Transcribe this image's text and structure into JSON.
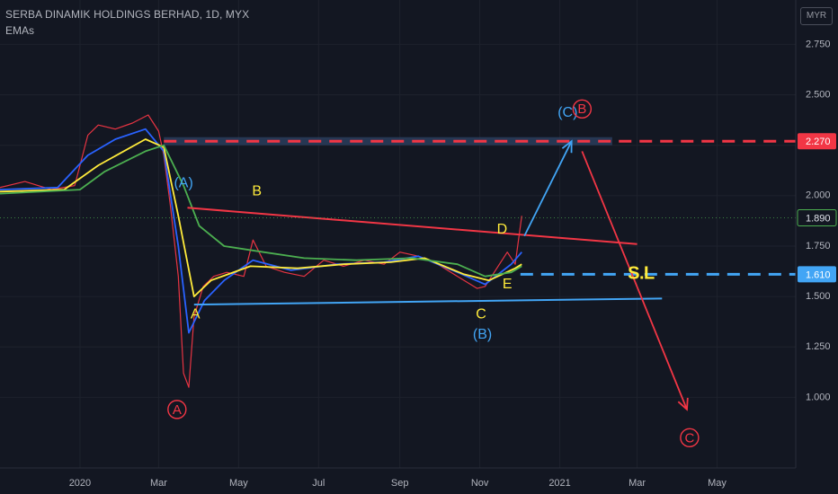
{
  "header": {
    "title": "SERBA DINAMIK HOLDINGS BERHAD, 1D, MYX",
    "indicator": "EMAs",
    "currency": "MYR"
  },
  "colors": {
    "background": "#131722",
    "grid": "#1e222d",
    "resistance_line": "#f23645",
    "support_line": "#42a5f5",
    "wave_red": "#f23645",
    "wave_blue": "#42a5f5",
    "wave_yellow": "#ffeb3b",
    "zone_fill": "#2a3d5c"
  },
  "chart_data": {
    "type": "line",
    "y_axis": {
      "ticks": [
        "2.750",
        "2.500",
        "2.250",
        "2.000",
        "1.750",
        "1.500",
        "1.250",
        "1.000"
      ],
      "ylim": [
        0.65,
        2.97
      ],
      "side": "right"
    },
    "x_axis": {
      "ticks": [
        "2020",
        "Mar",
        "May",
        "Jul",
        "Sep",
        "Nov",
        "2021",
        "Mar",
        "May"
      ],
      "range": [
        "2019-11-01",
        "2021-06-30"
      ]
    },
    "grid": true,
    "price_labels": [
      {
        "value": 2.27,
        "text": "2.270",
        "color": "#f23645"
      },
      {
        "value": 1.89,
        "text": "1.890",
        "color": "#131722"
      },
      {
        "value": 1.61,
        "text": "1.610",
        "color": "#42a5f5"
      }
    ],
    "series": [
      {
        "role": "price",
        "color": "#f23645",
        "points": [
          [
            "2019-11-01",
            2.04
          ],
          [
            "2019-11-20",
            2.07
          ],
          [
            "2019-12-10",
            2.03
          ],
          [
            "2019-12-28",
            2.05
          ],
          [
            "2020-01-07",
            2.3
          ],
          [
            "2020-01-15",
            2.35
          ],
          [
            "2020-01-28",
            2.33
          ],
          [
            "2020-02-10",
            2.36
          ],
          [
            "2020-02-22",
            2.4
          ],
          [
            "2020-03-01",
            2.32
          ],
          [
            "2020-03-05",
            2.2
          ],
          [
            "2020-03-10",
            1.95
          ],
          [
            "2020-03-16",
            1.6
          ],
          [
            "2020-03-20",
            1.12
          ],
          [
            "2020-03-24",
            1.05
          ],
          [
            "2020-03-28",
            1.4
          ],
          [
            "2020-04-04",
            1.55
          ],
          [
            "2020-04-12",
            1.6
          ],
          [
            "2020-04-22",
            1.62
          ],
          [
            "2020-05-05",
            1.6
          ],
          [
            "2020-05-12",
            1.78
          ],
          [
            "2020-05-22",
            1.65
          ],
          [
            "2020-06-05",
            1.62
          ],
          [
            "2020-06-20",
            1.6
          ],
          [
            "2020-07-05",
            1.68
          ],
          [
            "2020-07-20",
            1.65
          ],
          [
            "2020-08-05",
            1.68
          ],
          [
            "2020-08-20",
            1.66
          ],
          [
            "2020-09-01",
            1.72
          ],
          [
            "2020-09-15",
            1.7
          ],
          [
            "2020-09-30",
            1.66
          ],
          [
            "2020-10-15",
            1.6
          ],
          [
            "2020-10-30",
            1.54
          ],
          [
            "2020-11-05",
            1.55
          ],
          [
            "2020-11-15",
            1.65
          ],
          [
            "2020-11-22",
            1.72
          ],
          [
            "2020-11-28",
            1.66
          ],
          [
            "2020-12-03",
            1.9
          ]
        ]
      },
      {
        "role": "ema-fast",
        "color": "#2962ff",
        "points": [
          [
            "2019-11-01",
            2.03
          ],
          [
            "2019-12-15",
            2.04
          ],
          [
            "2020-01-07",
            2.2
          ],
          [
            "2020-01-28",
            2.28
          ],
          [
            "2020-02-20",
            2.33
          ],
          [
            "2020-03-05",
            2.22
          ],
          [
            "2020-03-16",
            1.75
          ],
          [
            "2020-03-24",
            1.32
          ],
          [
            "2020-04-05",
            1.48
          ],
          [
            "2020-04-20",
            1.58
          ],
          [
            "2020-05-12",
            1.68
          ],
          [
            "2020-06-10",
            1.63
          ],
          [
            "2020-07-15",
            1.66
          ],
          [
            "2020-08-20",
            1.67
          ],
          [
            "2020-09-15",
            1.7
          ],
          [
            "2020-10-15",
            1.62
          ],
          [
            "2020-11-05",
            1.56
          ],
          [
            "2020-11-25",
            1.66
          ],
          [
            "2020-12-03",
            1.72
          ]
        ]
      },
      {
        "role": "ema-mid",
        "color": "#ffeb3b",
        "points": [
          [
            "2019-11-01",
            2.02
          ],
          [
            "2019-12-20",
            2.03
          ],
          [
            "2020-01-15",
            2.15
          ],
          [
            "2020-02-20",
            2.28
          ],
          [
            "2020-03-05",
            2.24
          ],
          [
            "2020-03-16",
            1.9
          ],
          [
            "2020-03-28",
            1.5
          ],
          [
            "2020-04-10",
            1.58
          ],
          [
            "2020-05-10",
            1.65
          ],
          [
            "2020-06-15",
            1.64
          ],
          [
            "2020-07-20",
            1.66
          ],
          [
            "2020-08-25",
            1.67
          ],
          [
            "2020-09-20",
            1.69
          ],
          [
            "2020-10-20",
            1.61
          ],
          [
            "2020-11-08",
            1.58
          ],
          [
            "2020-11-28",
            1.64
          ],
          [
            "2020-12-03",
            1.66
          ]
        ]
      },
      {
        "role": "ema-slow",
        "color": "#4caf50",
        "points": [
          [
            "2019-11-01",
            2.01
          ],
          [
            "2020-01-01",
            2.03
          ],
          [
            "2020-01-20",
            2.12
          ],
          [
            "2020-02-20",
            2.22
          ],
          [
            "2020-03-05",
            2.25
          ],
          [
            "2020-03-20",
            2.05
          ],
          [
            "2020-04-01",
            1.85
          ],
          [
            "2020-04-20",
            1.75
          ],
          [
            "2020-05-20",
            1.72
          ],
          [
            "2020-06-20",
            1.69
          ],
          [
            "2020-07-30",
            1.68
          ],
          [
            "2020-09-10",
            1.69
          ],
          [
            "2020-10-15",
            1.66
          ],
          [
            "2020-11-05",
            1.6
          ],
          [
            "2020-11-25",
            1.62
          ],
          [
            "2020-12-03",
            1.65
          ]
        ]
      }
    ],
    "trendlines": [
      {
        "name": "resistance",
        "color": "#f23645",
        "from": [
          "2020-03-23",
          1.94
        ],
        "to": [
          "2021-03-01",
          1.76
        ]
      },
      {
        "name": "support",
        "color": "#42a5f5",
        "from": [
          "2020-03-28",
          1.46
        ],
        "to": [
          "2021-03-20",
          1.49
        ]
      }
    ],
    "horizontal_lines": [
      {
        "value": 2.27,
        "color": "#f23645",
        "dashed": true,
        "from": "2020-03-05"
      },
      {
        "value": 1.61,
        "color": "#42a5f5",
        "dashed": true,
        "from": "2020-12-02"
      }
    ],
    "zone": {
      "from": [
        "2020-03-05",
        2.29
      ],
      "to": [
        "2021-02-10",
        2.25
      ]
    },
    "forecast_arrows": [
      {
        "color": "#42a5f5",
        "points": [
          [
            "2020-12-05",
            1.8
          ],
          [
            "2021-01-10",
            2.27
          ]
        ]
      },
      {
        "color": "#f23645",
        "points": [
          [
            "2021-01-18",
            2.22
          ],
          [
            "2021-04-08",
            0.94
          ]
        ]
      }
    ],
    "annotations": [
      {
        "text": "(A)",
        "x": "2020-03-20",
        "y": 2.06,
        "color": "#42a5f5"
      },
      {
        "text": "B",
        "x": "2020-05-15",
        "y": 2.02,
        "color": "#ffeb3b"
      },
      {
        "text": "A",
        "x": "2020-03-29",
        "y": 1.41,
        "color": "#ffeb3b"
      },
      {
        "text": "D",
        "x": "2020-11-18",
        "y": 1.83,
        "color": "#ffeb3b"
      },
      {
        "text": "E",
        "x": "2020-11-22",
        "y": 1.56,
        "color": "#ffeb3b"
      },
      {
        "text": "C",
        "x": "2020-11-02",
        "y": 1.41,
        "color": "#ffeb3b"
      },
      {
        "text": "(B)",
        "x": "2020-11-03",
        "y": 1.31,
        "color": "#42a5f5"
      },
      {
        "text": "(C)",
        "x": "2021-01-07",
        "y": 2.41,
        "color": "#42a5f5"
      },
      {
        "text": "S.L",
        "x": "2021-03-04",
        "y": 1.61,
        "color": "#ffeb3b"
      }
    ],
    "circled_labels": [
      {
        "text": "B",
        "x": "2021-01-18",
        "y": 2.43,
        "color": "#f23645"
      },
      {
        "text": "A",
        "x": "2020-03-15",
        "y": 0.94,
        "color": "#f23645"
      },
      {
        "text": "C",
        "x": "2021-04-10",
        "y": 0.8,
        "color": "#f23645"
      }
    ]
  }
}
